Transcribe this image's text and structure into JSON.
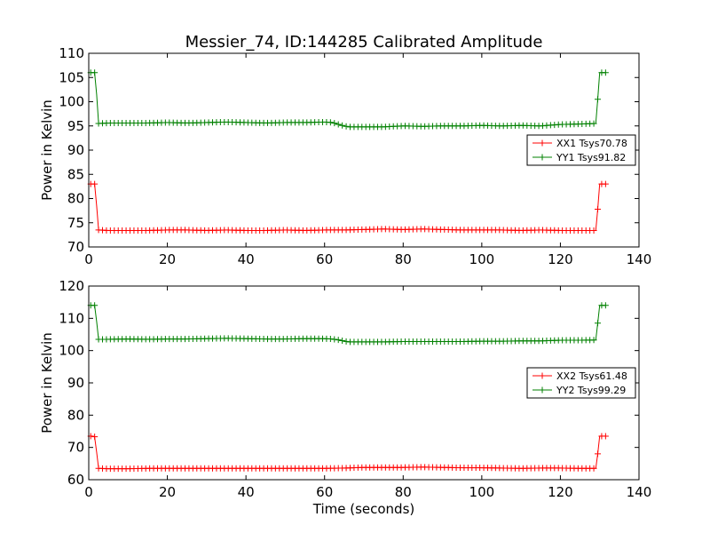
{
  "figure": {
    "title": "Messier_74, ID:144285 Calibrated Amplitude",
    "xlabel": "Time (seconds)"
  },
  "chart_data": [
    {
      "type": "line",
      "title": "Messier_74, ID:144285 Calibrated Amplitude",
      "xlabel": "",
      "ylabel": "Power in Kelvin",
      "xlim": [
        0,
        140
      ],
      "ylim": [
        70,
        110
      ],
      "xticks": [
        0,
        20,
        40,
        60,
        80,
        100,
        120,
        140
      ],
      "yticks": [
        70,
        75,
        80,
        85,
        90,
        95,
        100,
        105,
        110
      ],
      "grid": false,
      "legend_position": "right",
      "series": [
        {
          "name": "XX1 Tsys70.78",
          "color": "#ff0000",
          "marker": "plus",
          "x": [
            0.5,
            1.0,
            1.5,
            2.0,
            2.5,
            5,
            10,
            15,
            20,
            25,
            30,
            35,
            40,
            45,
            50,
            55,
            60,
            65,
            70,
            75,
            80,
            85,
            90,
            95,
            100,
            105,
            110,
            115,
            120,
            125,
            129,
            129.5,
            130.0,
            130.5,
            131.0,
            131.5
          ],
          "y": [
            83,
            83,
            83,
            78.5,
            73.5,
            73.4,
            73.4,
            73.4,
            73.5,
            73.5,
            73.4,
            73.5,
            73.4,
            73.4,
            73.5,
            73.4,
            73.5,
            73.5,
            73.6,
            73.7,
            73.6,
            73.7,
            73.6,
            73.5,
            73.5,
            73.5,
            73.4,
            73.5,
            73.4,
            73.4,
            73.4,
            77.8,
            83,
            83,
            83,
            83
          ]
        },
        {
          "name": "YY1 Tsys91.82",
          "color": "#008000",
          "marker": "plus",
          "x": [
            0.5,
            1.0,
            1.5,
            2.0,
            2.5,
            5,
            10,
            15,
            20,
            25,
            30,
            35,
            40,
            45,
            50,
            55,
            60,
            62,
            64,
            66,
            70,
            75,
            80,
            85,
            90,
            95,
            100,
            105,
            110,
            115,
            120,
            125,
            129,
            129.5,
            130.0,
            130.5,
            131.0,
            131.5
          ],
          "y": [
            106,
            106,
            106,
            101.5,
            95.5,
            95.6,
            95.6,
            95.6,
            95.7,
            95.6,
            95.7,
            95.8,
            95.7,
            95.6,
            95.7,
            95.7,
            95.8,
            95.7,
            95.2,
            94.8,
            94.8,
            94.8,
            95.0,
            94.9,
            95.0,
            95.0,
            95.1,
            95.0,
            95.1,
            95.0,
            95.3,
            95.4,
            95.5,
            100.5,
            106,
            106,
            106,
            106
          ]
        }
      ]
    },
    {
      "type": "line",
      "title": "",
      "xlabel": "Time (seconds)",
      "ylabel": "Power in Kelvin",
      "xlim": [
        0,
        140
      ],
      "ylim": [
        60,
        120
      ],
      "xticks": [
        0,
        20,
        40,
        60,
        80,
        100,
        120,
        140
      ],
      "yticks": [
        60,
        70,
        80,
        90,
        100,
        110,
        120
      ],
      "grid": false,
      "legend_position": "right",
      "series": [
        {
          "name": "XX2 Tsys61.48",
          "color": "#ff0000",
          "marker": "plus",
          "x": [
            0.5,
            1.0,
            1.5,
            2.0,
            2.5,
            5,
            10,
            15,
            20,
            25,
            30,
            35,
            40,
            45,
            50,
            55,
            60,
            65,
            70,
            75,
            80,
            85,
            90,
            95,
            100,
            105,
            110,
            115,
            120,
            125,
            129,
            129.5,
            130.0,
            130.5,
            131.0,
            131.5
          ],
          "y": [
            73.5,
            73.5,
            73.3,
            68.5,
            63.5,
            63.4,
            63.4,
            63.5,
            63.5,
            63.5,
            63.5,
            63.5,
            63.5,
            63.5,
            63.5,
            63.5,
            63.5,
            63.6,
            63.8,
            63.8,
            63.8,
            63.9,
            63.8,
            63.7,
            63.7,
            63.6,
            63.5,
            63.6,
            63.6,
            63.5,
            63.5,
            68.0,
            73.5,
            73.5,
            73.5,
            73.5
          ]
        },
        {
          "name": "YY2 Tsys99.29",
          "color": "#008000",
          "marker": "plus",
          "x": [
            0.5,
            1.0,
            1.5,
            2.0,
            2.5,
            5,
            10,
            15,
            20,
            25,
            30,
            35,
            40,
            45,
            50,
            55,
            60,
            62,
            64,
            66,
            70,
            75,
            80,
            85,
            90,
            95,
            100,
            105,
            110,
            115,
            120,
            125,
            129,
            129.5,
            130.0,
            130.5,
            131.0,
            131.5
          ],
          "y": [
            114,
            114,
            114,
            109.0,
            103.5,
            103.5,
            103.6,
            103.5,
            103.6,
            103.6,
            103.7,
            103.8,
            103.7,
            103.6,
            103.6,
            103.7,
            103.7,
            103.6,
            103.2,
            102.7,
            102.7,
            102.7,
            102.8,
            102.8,
            102.8,
            102.8,
            102.9,
            102.9,
            103.0,
            103.0,
            103.2,
            103.2,
            103.3,
            108.5,
            114,
            114,
            114,
            114
          ]
        }
      ]
    }
  ]
}
